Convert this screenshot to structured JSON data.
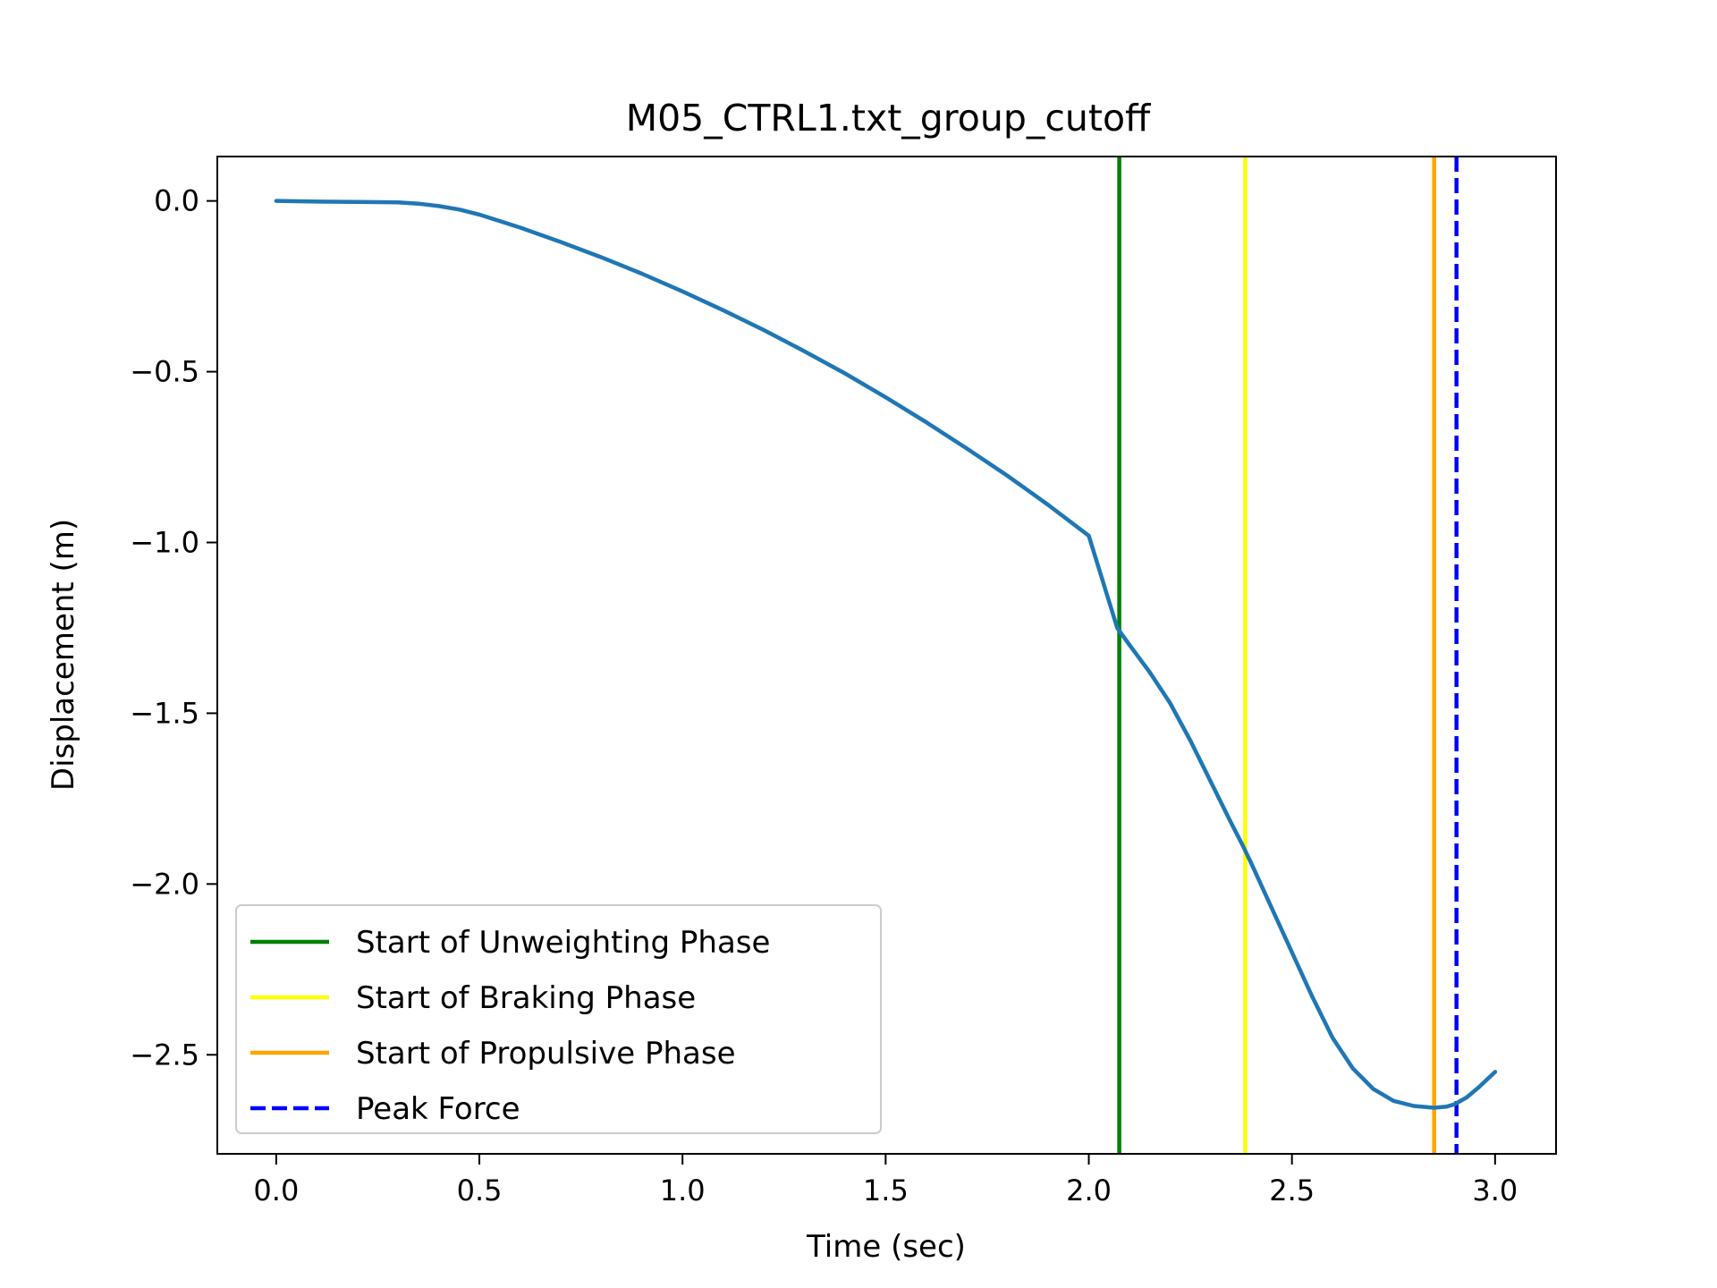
{
  "chart_data": {
    "type": "line",
    "title": "M05_CTRL1.txt_group_cutoff",
    "xlabel": "Time (sec)",
    "ylabel": "Displacement (m)",
    "xlim": [
      -0.145,
      3.15
    ],
    "ylim": [
      -2.79,
      0.13
    ],
    "xticks": [
      0.0,
      0.5,
      1.0,
      1.5,
      2.0,
      2.5,
      3.0
    ],
    "xtick_labels": [
      "0.0",
      "0.5",
      "1.0",
      "1.5",
      "2.0",
      "2.5",
      "3.0"
    ],
    "yticks": [
      0.0,
      -0.5,
      -1.0,
      -1.5,
      -2.0,
      -2.5
    ],
    "ytick_labels": [
      "0.0",
      "−0.5",
      "−1.0",
      "−1.5",
      "−2.0",
      "−2.5"
    ],
    "grid": false,
    "legend_position": "lower-left",
    "series": [
      {
        "color": "#1f77b4",
        "x": [
          0.0,
          0.1,
          0.2,
          0.3,
          0.35,
          0.4,
          0.45,
          0.5,
          0.6,
          0.7,
          0.8,
          0.9,
          1.0,
          1.1,
          1.2,
          1.3,
          1.4,
          1.5,
          1.6,
          1.7,
          1.8,
          1.9,
          2.0,
          2.07,
          2.1,
          2.15,
          2.2,
          2.25,
          2.3,
          2.35,
          2.38,
          2.4,
          2.45,
          2.5,
          2.55,
          2.6,
          2.65,
          2.7,
          2.75,
          2.8,
          2.85,
          2.88,
          2.9,
          2.93,
          2.96,
          3.0
        ],
        "y": [
          0.0,
          -0.002,
          -0.003,
          -0.004,
          -0.008,
          -0.015,
          -0.025,
          -0.04,
          -0.078,
          -0.12,
          -0.165,
          -0.213,
          -0.265,
          -0.32,
          -0.378,
          -0.44,
          -0.505,
          -0.575,
          -0.648,
          -0.725,
          -0.805,
          -0.89,
          -0.98,
          -1.25,
          -1.3,
          -1.38,
          -1.47,
          -1.58,
          -1.7,
          -1.82,
          -1.89,
          -1.94,
          -2.07,
          -2.2,
          -2.33,
          -2.45,
          -2.54,
          -2.6,
          -2.635,
          -2.65,
          -2.655,
          -2.652,
          -2.645,
          -2.625,
          -2.595,
          -2.55
        ]
      }
    ],
    "vlines": [
      {
        "name": "Start of Unweighting Phase",
        "x": 2.075,
        "color": "#008000",
        "style": "solid"
      },
      {
        "name": "Start of Braking Phase",
        "x": 2.385,
        "color": "#ffff00",
        "style": "solid"
      },
      {
        "name": "Start of Propulsive Phase",
        "x": 2.85,
        "color": "#ffa500",
        "style": "solid"
      },
      {
        "name": "Peak Force",
        "x": 2.905,
        "color": "#0000ff",
        "style": "dashed"
      }
    ]
  }
}
